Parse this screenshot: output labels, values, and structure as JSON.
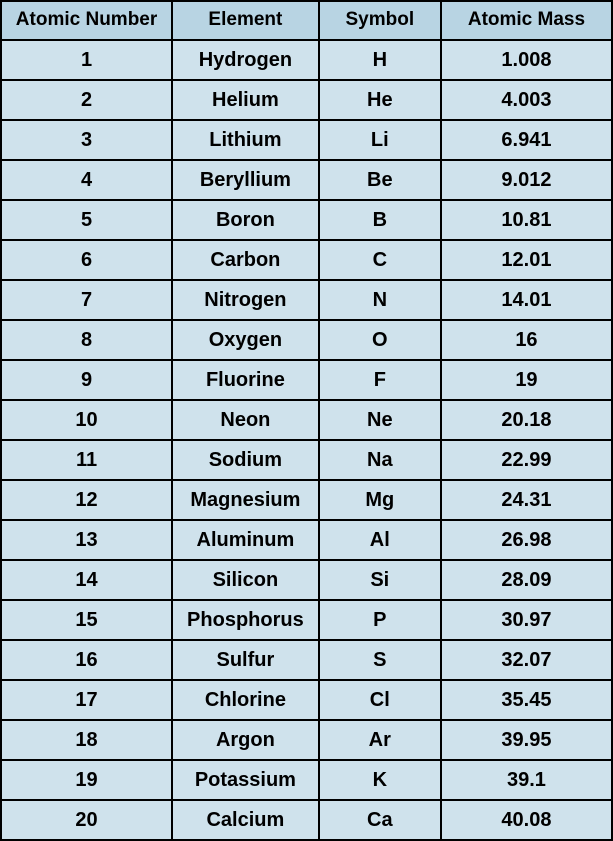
{
  "table": {
    "colors": {
      "header_bg": "#b8d4e3",
      "cell_bg": "#cfe2ec",
      "border": "#000000",
      "text": "#000000"
    },
    "font": {
      "header_size": 19,
      "cell_size": 20,
      "weight": "bold",
      "family": "Trebuchet MS"
    },
    "columns": [
      "Atomic Number",
      "Element",
      "Symbol",
      "Atomic Mass"
    ],
    "column_widths_pct": [
      28,
      24,
      20,
      28
    ],
    "rows": [
      [
        "1",
        "Hydrogen",
        "H",
        "1.008"
      ],
      [
        "2",
        "Helium",
        "He",
        "4.003"
      ],
      [
        "3",
        "Lithium",
        "Li",
        "6.941"
      ],
      [
        "4",
        "Beryllium",
        "Be",
        "9.012"
      ],
      [
        "5",
        "Boron",
        "B",
        "10.81"
      ],
      [
        "6",
        "Carbon",
        "C",
        "12.01"
      ],
      [
        "7",
        "Nitrogen",
        "N",
        "14.01"
      ],
      [
        "8",
        "Oxygen",
        "O",
        "16"
      ],
      [
        "9",
        "Fluorine",
        "F",
        "19"
      ],
      [
        "10",
        "Neon",
        "Ne",
        "20.18"
      ],
      [
        "11",
        "Sodium",
        "Na",
        "22.99"
      ],
      [
        "12",
        "Magnesium",
        "Mg",
        "24.31"
      ],
      [
        "13",
        "Aluminum",
        "Al",
        "26.98"
      ],
      [
        "14",
        "Silicon",
        "Si",
        "28.09"
      ],
      [
        "15",
        "Phosphorus",
        "P",
        "30.97"
      ],
      [
        "16",
        "Sulfur",
        "S",
        "32.07"
      ],
      [
        "17",
        "Chlorine",
        "Cl",
        "35.45"
      ],
      [
        "18",
        "Argon",
        "Ar",
        "39.95"
      ],
      [
        "19",
        "Potassium",
        "K",
        "39.1"
      ],
      [
        "20",
        "Calcium",
        "Ca",
        "40.08"
      ]
    ]
  }
}
